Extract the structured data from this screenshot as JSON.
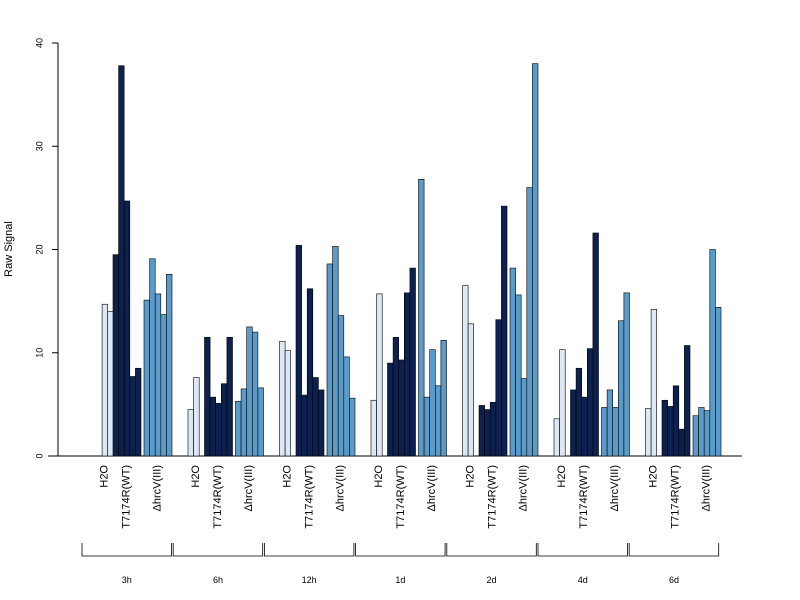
{
  "chart_data": {
    "type": "bar",
    "ylabel": "Raw Signal",
    "ylim": [
      0,
      40
    ],
    "yticks": [
      0,
      10,
      20,
      30,
      40
    ],
    "time_points": [
      "3h",
      "6h",
      "12h",
      "1d",
      "2d",
      "4d",
      "6d"
    ],
    "conditions": [
      "H2O",
      "T7174R(WT)",
      "ΔhrcV(III)"
    ],
    "colors": {
      "H2O": "#dde8f5",
      "T7174R(WT)": "#0d2150",
      "ΔhrcV(III)": "#5b9bc9"
    },
    "groups": [
      {
        "time": "3h",
        "H2O": [
          0,
          14.7,
          14.0
        ],
        "T7174R(WT)": [
          19.5,
          37.8,
          24.7,
          7.7,
          8.5
        ],
        "ΔhrcV(III)": [
          15.1,
          19.1,
          15.7,
          13.7,
          17.6
        ]
      },
      {
        "time": "6h",
        "H2O": [
          4.5,
          7.6
        ],
        "T7174R(WT)": [
          11.5,
          5.7,
          5.1,
          7.0,
          11.5
        ],
        "ΔhrcV(III)": [
          5.3,
          6.5,
          12.5,
          12.0,
          6.6
        ]
      },
      {
        "time": "12h",
        "H2O": [
          11.1,
          10.2
        ],
        "T7174R(WT)": [
          20.4,
          5.9,
          16.2,
          7.6,
          6.4
        ],
        "ΔhrcV(III)": [
          18.6,
          20.3,
          13.6,
          9.6,
          5.6
        ]
      },
      {
        "time": "1d",
        "H2O": [
          5.4,
          15.7
        ],
        "T7174R(WT)": [
          9.0,
          11.5,
          9.3,
          15.8,
          18.2
        ],
        "ΔhrcV(III)": [
          26.8,
          5.7,
          10.3,
          6.8,
          11.2
        ]
      },
      {
        "time": "2d",
        "H2O": [
          16.5,
          12.8
        ],
        "T7174R(WT)": [
          4.9,
          4.5,
          5.2,
          13.2,
          24.2
        ],
        "ΔhrcV(III)": [
          18.2,
          15.6,
          7.5,
          26.0,
          38.0
        ]
      },
      {
        "time": "4d",
        "H2O": [
          3.6,
          10.3
        ],
        "T7174R(WT)": [
          6.4,
          8.5,
          5.7,
          10.4,
          21.6
        ],
        "ΔhrcV(III)": [
          4.7,
          6.4,
          4.7,
          13.1,
          15.8
        ]
      },
      {
        "time": "6d",
        "H2O": [
          4.6,
          14.2
        ],
        "T7174R(WT)": [
          5.4,
          4.8,
          6.8,
          2.6,
          10.7
        ],
        "ΔhrcV(III)": [
          3.9,
          4.7,
          4.4,
          20.0,
          14.4
        ]
      }
    ]
  }
}
